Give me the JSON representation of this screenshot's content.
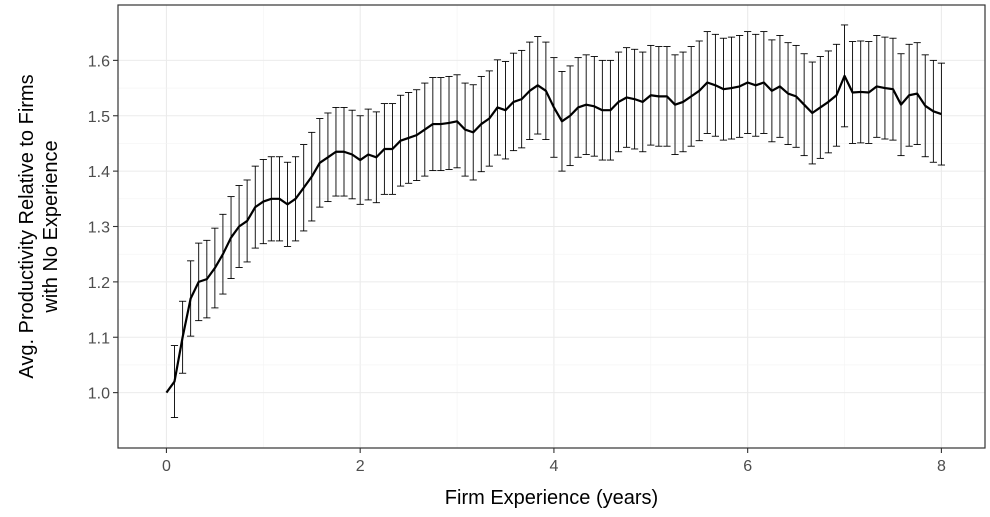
{
  "chart_data": {
    "type": "line",
    "title": "",
    "xlabel": "Firm Experience (years)",
    "ylabel_lines": [
      "Avg. Productivity Relative to Firms",
      "with No Experience"
    ],
    "xlim": [
      -0.5,
      8.45
    ],
    "ylim": [
      0.9,
      1.7
    ],
    "x_ticks": [
      0,
      2,
      4,
      6,
      8
    ],
    "x_tick_labels": [
      "0",
      "2",
      "4",
      "6",
      "8"
    ],
    "y_ticks": [
      1.0,
      1.1,
      1.2,
      1.3,
      1.4,
      1.5,
      1.6
    ],
    "y_tick_labels": [
      "1.0",
      "1.1",
      "1.2",
      "1.3",
      "1.4",
      "1.5",
      "1.6"
    ],
    "grid": true,
    "theme": "bw",
    "line_color": "#000000",
    "error_bar_color": "#000000",
    "series": [
      {
        "x": [
          0.0,
          0.083,
          0.167,
          0.25,
          0.333,
          0.417,
          0.5,
          0.583,
          0.667,
          0.75,
          0.833,
          0.917,
          1.0,
          1.083,
          1.167,
          1.25,
          1.333,
          1.417,
          1.5,
          1.583,
          1.667,
          1.75,
          1.833,
          1.917,
          2.0,
          2.083,
          2.167,
          2.25,
          2.333,
          2.417,
          2.5,
          2.583,
          2.667,
          2.75,
          2.833,
          2.917,
          3.0,
          3.083,
          3.167,
          3.25,
          3.333,
          3.417,
          3.5,
          3.583,
          3.667,
          3.75,
          3.833,
          3.917,
          4.0,
          4.083,
          4.167,
          4.25,
          4.333,
          4.417,
          4.5,
          4.583,
          4.667,
          4.75,
          4.833,
          4.917,
          5.0,
          5.083,
          5.167,
          5.25,
          5.333,
          5.417,
          5.5,
          5.583,
          5.667,
          5.75,
          5.833,
          5.917,
          6.0,
          6.083,
          6.167,
          6.25,
          6.333,
          6.417,
          6.5,
          6.583,
          6.667,
          6.75,
          6.833,
          6.917,
          7.0,
          7.083,
          7.167,
          7.25,
          7.333,
          7.417,
          7.5,
          7.583,
          7.667,
          7.75,
          7.833,
          7.917,
          8.0
        ],
        "y": [
          1.0,
          1.02,
          1.1,
          1.17,
          1.2,
          1.205,
          1.225,
          1.25,
          1.28,
          1.3,
          1.31,
          1.335,
          1.345,
          1.35,
          1.35,
          1.34,
          1.35,
          1.37,
          1.39,
          1.415,
          1.425,
          1.435,
          1.435,
          1.43,
          1.42,
          1.43,
          1.425,
          1.44,
          1.44,
          1.455,
          1.46,
          1.465,
          1.475,
          1.485,
          1.485,
          1.487,
          1.49,
          1.475,
          1.47,
          1.485,
          1.495,
          1.515,
          1.51,
          1.525,
          1.53,
          1.545,
          1.555,
          1.545,
          1.515,
          1.49,
          1.5,
          1.515,
          1.52,
          1.517,
          1.51,
          1.51,
          1.525,
          1.533,
          1.53,
          1.525,
          1.537,
          1.535,
          1.535,
          1.52,
          1.525,
          1.535,
          1.545,
          1.56,
          1.555,
          1.548,
          1.55,
          1.553,
          1.56,
          1.555,
          1.56,
          1.545,
          1.553,
          1.54,
          1.535,
          1.52,
          1.505,
          1.515,
          1.525,
          1.537,
          1.572,
          1.542,
          1.543,
          1.542,
          1.553,
          1.55,
          1.548,
          1.52,
          1.537,
          1.54,
          1.518,
          1.508,
          1.503
        ],
        "err": [
          0.0,
          0.065,
          0.065,
          0.068,
          0.07,
          0.07,
          0.072,
          0.072,
          0.074,
          0.074,
          0.074,
          0.074,
          0.076,
          0.076,
          0.076,
          0.076,
          0.076,
          0.078,
          0.08,
          0.08,
          0.08,
          0.08,
          0.08,
          0.08,
          0.08,
          0.082,
          0.082,
          0.082,
          0.082,
          0.082,
          0.082,
          0.082,
          0.084,
          0.084,
          0.084,
          0.084,
          0.084,
          0.084,
          0.086,
          0.086,
          0.086,
          0.086,
          0.088,
          0.088,
          0.088,
          0.088,
          0.088,
          0.088,
          0.09,
          0.09,
          0.09,
          0.09,
          0.09,
          0.09,
          0.09,
          0.09,
          0.09,
          0.09,
          0.09,
          0.09,
          0.09,
          0.09,
          0.09,
          0.09,
          0.09,
          0.09,
          0.09,
          0.092,
          0.092,
          0.092,
          0.092,
          0.092,
          0.092,
          0.092,
          0.092,
          0.092,
          0.092,
          0.092,
          0.092,
          0.092,
          0.092,
          0.092,
          0.092,
          0.092,
          0.092,
          0.092,
          0.092,
          0.092,
          0.092,
          0.092,
          0.092,
          0.092,
          0.092,
          0.092,
          0.092,
          0.092,
          0.092
        ]
      }
    ]
  }
}
